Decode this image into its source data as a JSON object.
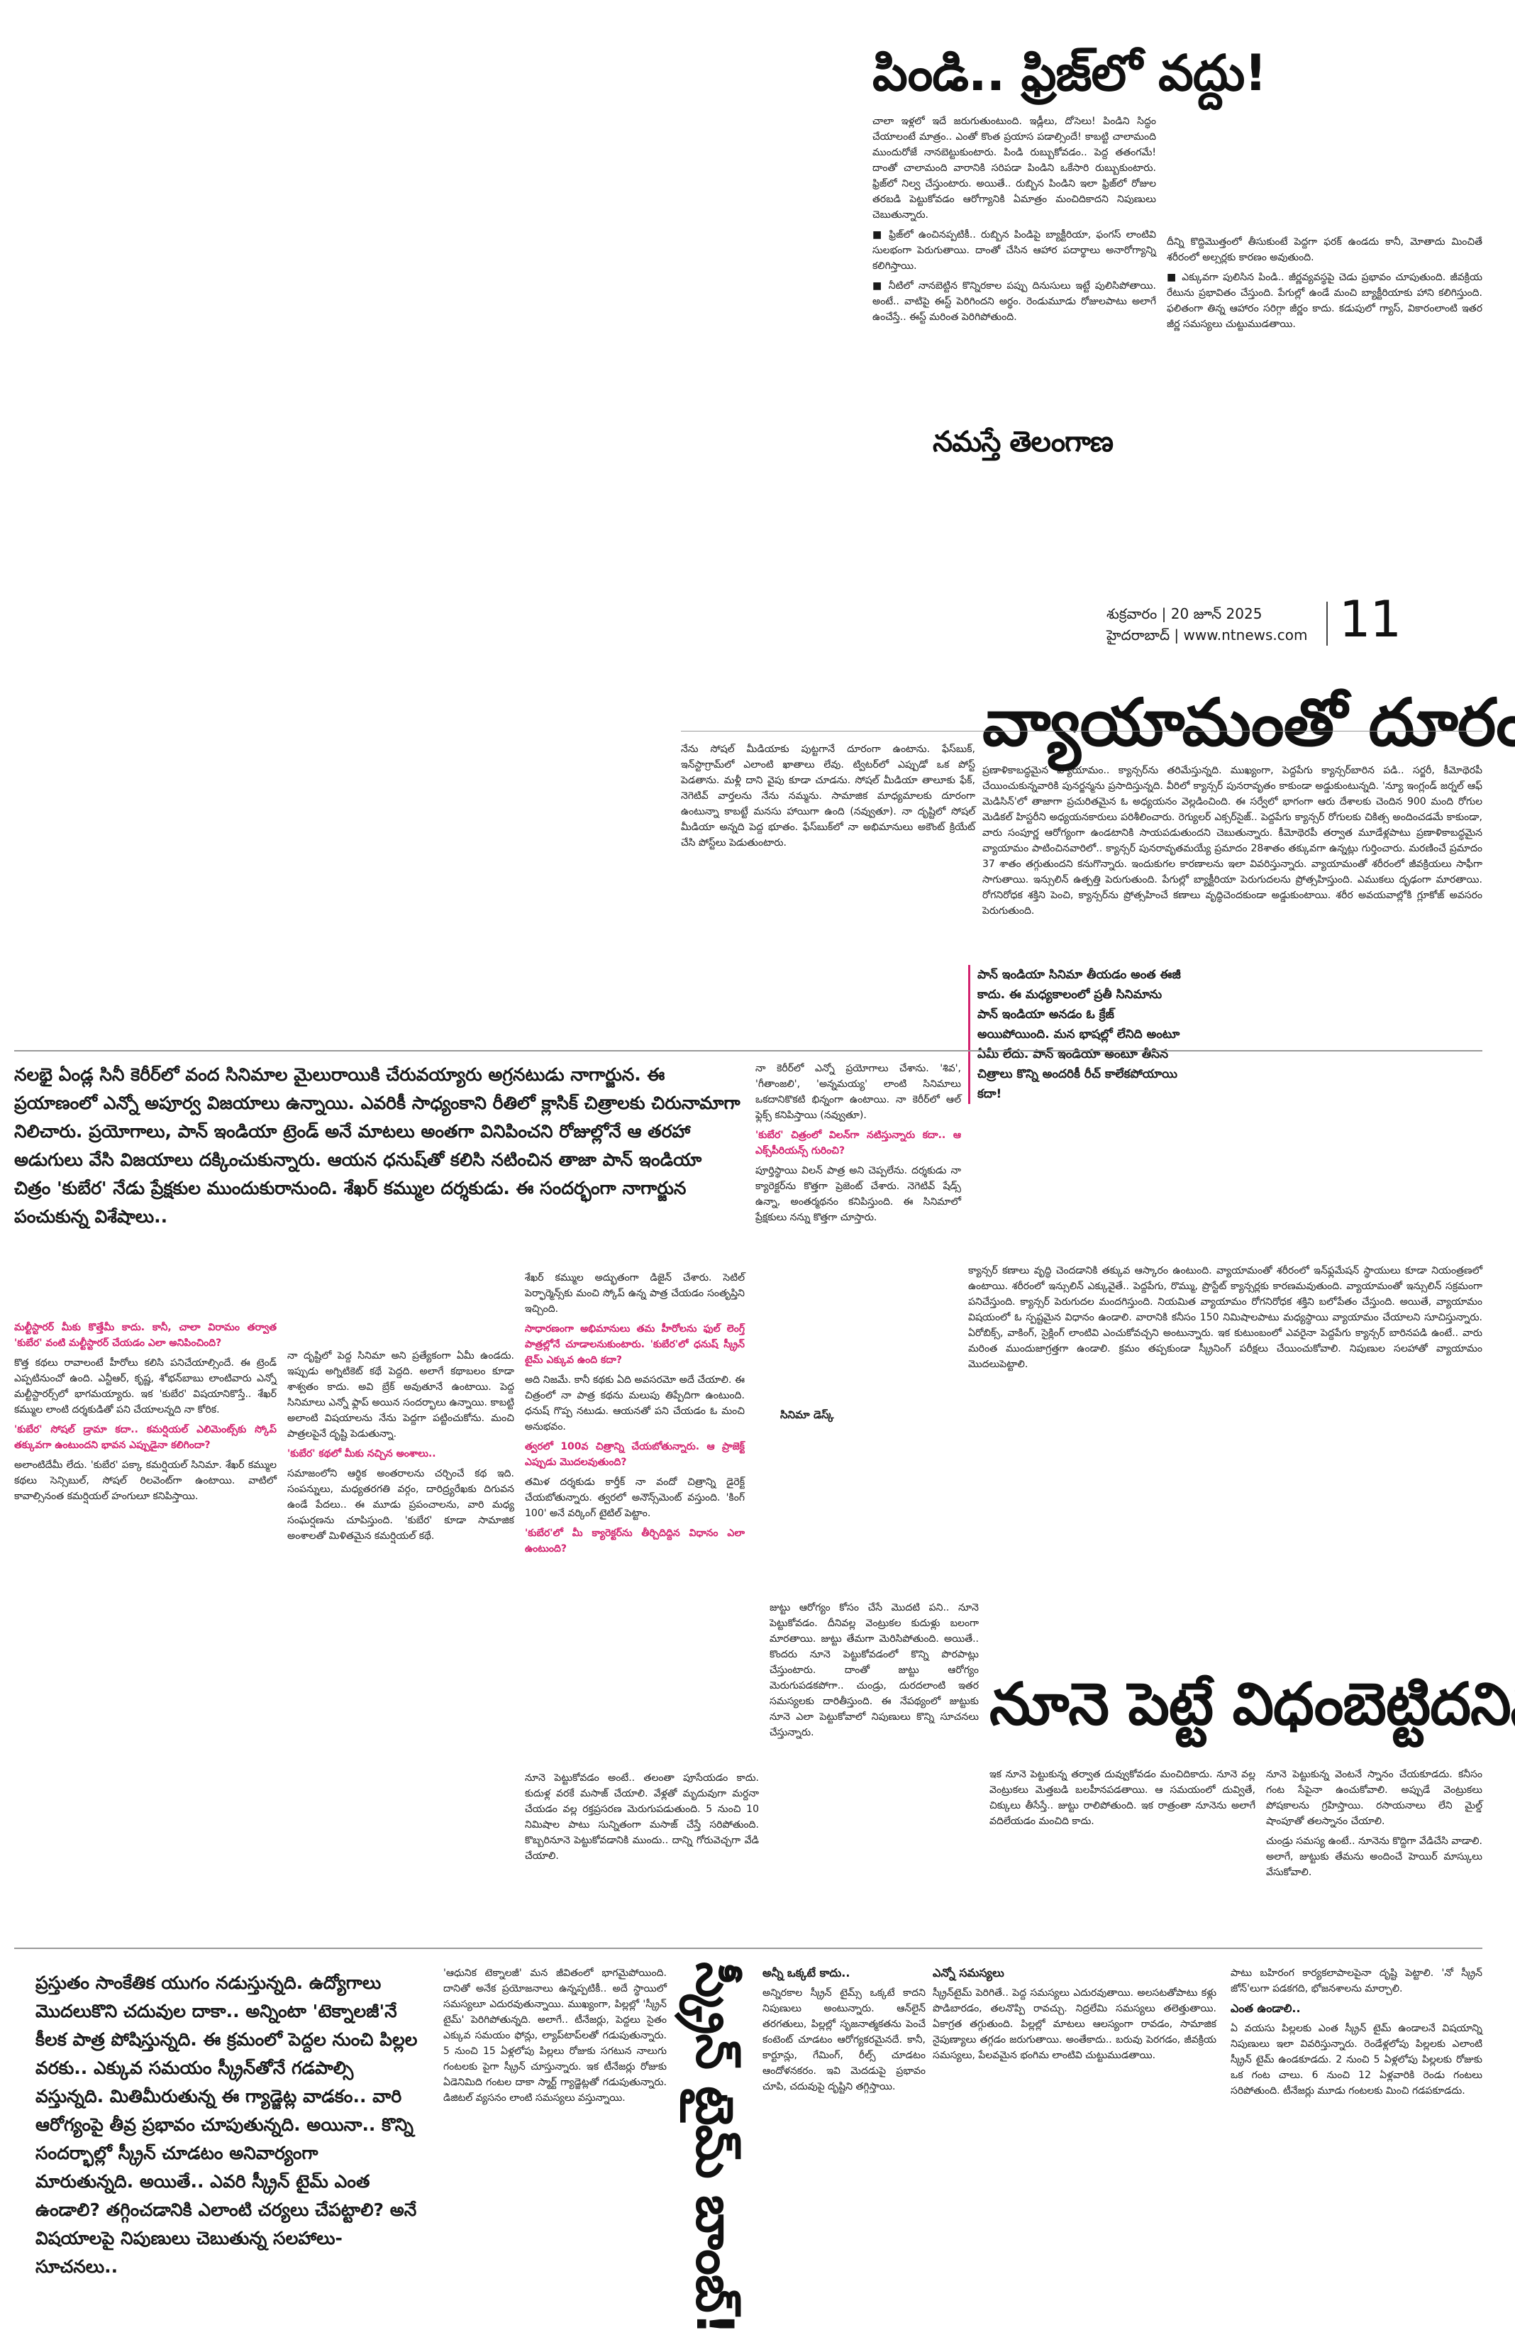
{
  "header": {
    "brand": "నమస్తే తెలంగాణ",
    "day_date": "శుక్రవారం | 20 జూన్ 2025",
    "city_site": "హైదరాబాద్ | www.ntnews.com",
    "page_number": "11"
  },
  "articles": [
    {
      "headline": "పిండి.. ఫ్రిజ్‌లో వద్దు!",
      "columns": [
        [
          {
            "p": "చాలా ఇళ్లలో ఇదే జరుగుతుంటుంది. ఇడ్లీలు, దోసెలు! పిండిని సిద్ధం చేయాలంటే మాత్రం.. ఎంతో కొంత ప్రయాస పడాల్సిందే! కాబట్టి చాలామంది ముందురోజే నానబెట్టుకుంటారు. పిండి రుబ్బుకోవడం.. పెద్ద తతంగమే! దాంతో చాలామంది వారానికి సరిపడా పిండిని ఒకేసారి రుబ్బుకుంటారు. ఫ్రిజ్‌లో నిల్వ చేస్తుంటారు. అయితే.. రుబ్బిన పిండిని ఇలా ఫ్రిజ్‌లో రోజుల తరబడి పెట్టుకోవడం ఆరోగ్యానికి ఏమాత్రం మంచిదికాదని నిపుణులు చెబుతున్నారు."
          },
          {
            "p": "■ ఫ్రిజ్‌లో ఉంచినప్పటికీ.. రుబ్బిన పిండిపై బ్యాక్టీరియా, ఫంగస్ లాంటివి సులభంగా పెరుగుతాయి. దాంతో చేసిన ఆహార పదార్థాలు అనారోగ్యాన్ని కలిగిస్తాయి."
          },
          {
            "p": "■ నీటిలో నానబెట్టిన కొన్నిరకాల పప్పు దినుసులు ఇట్టే పులిసిపోతాయి. అంటే.. వాటిపై ఈస్ట్ పెరిగిందని అర్థం. రెండుమూడు రోజులపాటు అలాగే ఉంచేస్తే.. ఈస్ట్ మరింత పెరిగిపోతుంది."
          }
        ],
        [
          {
            "p": "దీన్ని కొద్దిమొత్తంలో తీసుకుంటే పెద్దగా ఫరక్ ఉండదు కానీ, మోతాదు మించితే శరీరంలో అల్సర్లకు కారణం అవుతుంది."
          },
          {
            "p": "■ ఎక్కువగా పులిసిన పిండి.. జీర్ణవ్యవస్థపై చెడు ప్రభావం చూపుతుంది. జీవక్రియ రేటును ప్రభావితం చేస్తుంది. పేగుల్లో ఉండే మంచి బ్యాక్టీరియాకు హాని కలిగిస్తుంది. ఫలితంగా తిన్న ఆహారం సరిగ్గా జీర్ణం కాదు. కడుపులో గ్యాస్, వికారంలాంటి ఇతర జీర్ణ సమస్యలు చుట్టుముడతాయి."
          }
        ]
      ]
    },
    {
      "headline": "వ్యాయామంతో దూరం!",
      "columns": [
        [
          {
            "p": "నేను సోషల్ మీడియాకు పుట్టగానే దూరంగా ఉంటాను. ఫేస్‌బుక్, ఇన్‌స్టాగ్రామ్‌లో ఎలాంటి ఖాతాలు లేవు. ట్విటర్‌లో ఎప్పుడో ఒక పోస్ట్ పెడతాను. మళ్లీ దాని వైపు కూడా చూడను. సోషల్ మీడియా తాలూకు ఫేక్, నెగెటివ్ వార్తలను నేను నమ్మను. సామాజిక మాధ్యమాలకు దూరంగా ఉంటున్నా కాబట్టే మనసు హాయిగా ఉంది (నవ్వుతూ). నా దృష్టిలో సోషల్ మీడియా అన్నది పెద్ద భూతం. ఫేస్‌బుక్‌లో నా అభిమానులు అకౌంట్ క్రియేట్ చేసి పోస్ట్‌లు పెడుతుంటారు."
          }
        ],
        [
          {
            "p": "ప్రణాళికాబద్ధమైన వ్యాయామం.. క్యాన్సర్‌ను తరిమేస్తున్నది. ముఖ్యంగా, పెద్దపేగు క్యాన్సర్‌బారిన పడి.. సర్జరీ, కీమోథెరపీ చేయించుకున్నవారికి పునర్జన్మను ప్రసాదిస్తున్నది. వీరిలో క్యాన్సర్ పునరావృతం కాకుండా అడ్డుకుంటున్నది. 'న్యూ ఇంగ్లండ్ జర్నల్ ఆఫ్ మెడిసిన్'లో తాజాగా ప్రచురితమైన ఓ అధ్యయనం వెల్లడించింది. ఈ సర్వేలో భాగంగా ఆరు దేశాలకు చెందిన 900 మంది రోగుల మెడికల్ హిస్టరీని అధ్యయనకారులు పరిశీలించారు. రెగ్యులర్ ఎక్సర్‌సైజ్.. పెద్దపేగు క్యాన్సర్ రోగులకు చికిత్స అందించడమే కాకుండా, వారు సంపూర్ణ ఆరోగ్యంగా ఉండటానికి సాయపడుతుందని చెబుతున్నారు. కీమోథెరపీ తర్వాత మూడేళ్లపాటు ప్రణాళికాబద్ధమైన వ్యాయామం పాటించినవారిలో.. క్యాన్సర్ పునరావృతమయ్యే ప్రమాదం 28శాతం తక్కువగా ఉన్నట్లు గుర్తించారు. మరణించే ప్రమాదం 37 శాతం తగ్గుతుందని కనుగొన్నారు. ఇందుకుగల కారణాలను ఇలా వివరిస్తున్నారు. వ్యాయామంతో శరీరంలో జీవక్రియలు సాఫీగా సాగుతాయి. ఇన్సులిన్ ఉత్పత్తి పెరుగుతుంది. పేగుల్లో బ్యాక్టీరియా పెరుగుదలను ప్రోత్సహిస్తుంది. ఎముకలు దృఢంగా మారతాయి. రోగనిరోధక శక్తిని పెంచి, క్యాన్సర్‌ను ప్రోత్సహించే కణాలు వృద్ధిచెందకుండా అడ్డుకుంటాయి. శరీర అవయవాల్లోకి గ్లూకోజ్ అవసరం పెరుగుతుంది."
          }
        ],
        [
          {
            "p": "క్యాన్సర్ కణాలు వృద్ధి చెందడానికి తక్కువ ఆస్కారం ఉంటుంది. వ్యాయామంతో శరీరంలో ఇన్‌ఫ్లమేషన్ స్థాయులు కూడా నియంత్రణలో ఉంటాయి. శరీరంలో ఇన్సులిన్ ఎక్కువైతే.. పెద్దపేగు, రొమ్ము, ప్రొస్టేట్ క్యాన్సర్లకు కారణమవుతుంది. వ్యాయామంతో ఇన్సులిన్ సక్రమంగా పనిచేస్తుంది. క్యాన్సర్ పెరుగుదల మందగిస్తుంది. నియమిత వ్యాయామం రోగనిరోధక శక్తిని బలోపేతం చేస్తుంది. అయితే, వ్యాయామం విషయంలో ఓ స్పష్టమైన విధానం ఉండాలి. వారానికి కనీసం 150 నిమిషాలపాటు మధ్యస్థాయి వ్యాయామం చేయాలని సూచిస్తున్నారు. ఏరోబిక్స్, వాకింగ్, సైక్లింగ్ లాంటివి ఎంచుకోవచ్చని అంటున్నారు. ఇక కుటుంబంలో ఎవరైనా పెద్దపేగు క్యాన్సర్ బారినపడి ఉంటే.. వారు మరింత ముందుజాగ్రత్తగా ఉండాలి. క్రమం తప్పకుండా స్క్రీనింగ్ పరీక్షలు చేయించుకోవాలి. నిపుణుల సలహాతో వ్యాయామం మొదలుపెట్టాలి."
          }
        ]
      ]
    },
    {
      "headline": "నలభై ఏండ్ల సినీ కెరీర్‌లో వంద సినిమాల మైలురాయికి చేరువయ్యారు అగ్రనటుడు నాగార్జున. ఈ ప్రయాణంలో ఎన్నో అపూర్వ విజయాలు ఉన్నాయి. ఎవరికీ సాధ్యంకాని రీతిలో క్లాసిక్ చిత్రాలకు చిరునామాగా నిలిచారు. ప్రయోగాలు, పాన్ ఇండియా ట్రెండ్ అనే మాటలు అంతగా వినిపించని రోజుల్లోనే ఆ తరహా అడుగులు వేసి విజయాలు దక్కించుకున్నారు. ఆయన ధనుష్‌తో కలిసి నటించిన తాజా పాన్ ఇండియా చిత్రం 'కుబేర' నేడు ప్రేక్షకుల ముందుకురానుంది. శేఖర్ కమ్ముల దర్శకుడు. ఈ సందర్భంగా నాగార్జున పంచుకున్న విశేషాలు..",
      "columns": [
        [
          {
            "q": "మల్టీస్టారర్ మీకు కొత్తేమీ కాదు. కానీ, చాలా విరామం తర్వాత 'కుబేర' వంటి మల్టీస్టారర్ చేయడం ఎలా అనిపించింది?"
          },
          {
            "p": "కొత్త కథలు రావాలంటే హీరోలు కలిసి పనిచేయాల్సిందే. ఈ ట్రెండ్ ఎప్పటినుంచో ఉంది. ఎన్టీఆర్, కృష్ణ, శోభన్‌బాబు లాంటివారు ఎన్నో మల్టీస్టారర్స్‌లో భాగమయ్యారు. ఇక 'కుబేర' విషయానికొస్తే.. శేఖర్ కమ్ముల లాంటి దర్శకుడితో పని చేయాలన్నది నా కోరిక."
          },
          {
            "q": "'కుబేర' సోషల్ డ్రామా కదా.. కమర్షియల్ ఎలిమెంట్స్‌కు స్కోప్ తక్కువగా ఉంటుందని భావన ఎప్పుడైనా కలిగిందా?"
          },
          {
            "p": "అలాంటిదేమీ లేదు. 'కుబేర' పక్కా కమర్షియల్ సినిమా. శేఖర్ కమ్ముల కథలు సెన్సిబుల్, సోషల్ రిలవెంట్‌గా ఉంటాయి. వాటిలో కావాల్సినంత కమర్షియల్ హంగులూ కనిపిస్తాయి."
          }
        ],
        [
          {
            "p": "నా దృష్టిలో పెద్ద సినిమా అని ప్రత్యేకంగా ఏమీ ఉండదు. ఇప్పుడు అగ్నిటికెట్ కథే పెద్దది. అలాగే కథాబలం కూడా శాశ్వతం కాదు. అవి బ్రేక్ అవుతూనే ఉంటాయి. పెద్ద సినిమాలు ఎన్నో ఫ్లాప్ అయిన సందర్భాలు ఉన్నాయి. కాబట్టి అలాంటి విషయాలను నేను పెద్దగా పట్టించుకోను. మంచి పాత్రలపైనే దృష్టి పెడుతున్నా."
          },
          {
            "q": "'కుబేర' కథలో మీకు నచ్చిన అంశాలు.."
          },
          {
            "p": "సమాజంలోని ఆర్థిక అంతరాలను చర్చించే కథ ఇది. సంపన్నులు, మధ్యతరగతి వర్గం, దారిద్ర్యరేఖకు దిగువన ఉండే పేదలు.. ఈ మూడు ప్రపంచాలను, వారి మధ్య సంఘర్షణను చూపిస్తుంది. 'కుబేర' కూడా సామాజిక అంశాలతో మిళితమైన కమర్షియల్ కథే."
          }
        ],
        [
          {
            "p": "శేఖర్ కమ్ముల అద్భుతంగా డిజైన్ చేశారు. సెటిల్ పెర్ఫార్మెన్స్‌కు మంచి స్కోప్ ఉన్న పాత్ర చేయడం సంతృప్తిని ఇచ్చింది."
          },
          {
            "q": "సాధారణంగా అభిమానులు తమ హీరోలను ఫుల్ లెంగ్త్ పాత్రల్లోనే చూడాలనుకుంటారు. 'కుబేర'లో ధనుష్ స్క్రీన్ టైమ్ ఎక్కువ ఉంది కదా?"
          },
          {
            "p": "అది నిజమే. కానీ కథకు ఏది అవసరమో అదే చేయాలి. ఈ చిత్రంలో నా పాత్ర కథను మలుపు తిప్పేదిగా ఉంటుంది. ధనుష్ గొప్ప నటుడు. ఆయనతో పని చేయడం ఓ మంచి అనుభవం."
          },
          {
            "q": "త్వరలో 100వ చిత్రాన్ని చేయబోతున్నారు. ఆ ప్రాజెక్ట్ ఎప్పుడు మొదలవుతుంది?"
          },
          {
            "p": "తమిళ దర్శకుడు కార్తీక్ నా వందో చిత్రాన్ని డైరెక్ట్ చేయబోతున్నారు. త్వరలో అనౌన్స్‌మెంట్ వస్తుంది. 'కింగ్ 100' అనే వర్కింగ్ టైటిల్ పెట్టాం."
          },
          {
            "q": "'కుబేర'లో మీ క్యారెక్టర్‌ను తీర్చిదిద్దిన విధానం ఎలా ఉంటుంది?"
          }
        ],
        [
          {
            "p": "నా కెరీర్‌లో ఎన్నో ప్రయోగాలు చేశాను. 'శివ', 'గీతాంజలి', 'అన్నమయ్య' లాంటి సినిమాలు ఒకదానికొకటి భిన్నంగా ఉంటాయి. నా కెరీర్‌లో ఆల్ ఫ్లెక్స్ కనిపిస్తాయి (నవ్వుతూ)."
          },
          {
            "q": "'కుబేర' చిత్రంలో విలన్‌గా నటిస్తున్నారు కదా.. ఆ ఎక్స్‌పీరియన్స్ గురించి?"
          },
          {
            "p": "పూర్తిస్థాయి విలన్ పాత్ర అని చెప్పలేను. దర్శకుడు నా క్యారెక్టర్‌ను కొత్తగా ప్రెజెంట్ చేశారు. నెగెటివ్ షేడ్స్ ఉన్నా, అంతర్మథనం కనిపిస్తుంది. ఈ సినిమాలో ప్రేక్షకులు నన్ను కొత్తగా చూస్తారు."
          }
        ]
      ],
      "quote": "పాన్ ఇండియా సినిమా తీయడం అంత ఈజీ కాదు. ఈ మధ్యకాలంలో ప్రతీ సినిమాను పాన్ ఇండియా అనడం ఓ క్రేజ్ అయిపోయింది. మన భాషల్లో లేనిది అంటూ ఏమీ లేదు. పాన్ ఇండియా అంటూ తీసిన చిత్రాలు కొన్ని అందరికీ రీచ్ కాలేకపోయాయి కదా!",
      "byline": "సినిమా డెస్క్"
    },
    {
      "headline": "నూనె పెట్టే విధంబెట్టిదనిన!",
      "columns": [
        [
          {
            "p": "జుట్టు ఆరోగ్యం కోసం చేసే మొదటి పని.. నూనె పెట్టుకోవడం. దీనివల్ల వెంట్రుకల కుదుళ్లు బలంగా మారతాయి. జుట్టు తేమగా మెరిసిపోతుంది. అయితే.. కొందరు నూనె పెట్టుకోవడంలో కొన్ని పొరపాట్లు చేస్తుంటారు. దాంతో జుట్టు ఆరోగ్యం మెరుగుపడకపోగా.. చుండ్రు, దురదలాంటి ఇతర సమస్యలకు దారితీస్తుంది. ఈ నేపథ్యంలో జుట్టుకు నూనె ఎలా పెట్టుకోవాలో నిపుణులు కొన్ని సూచనలు చేస్తున్నారు."
          }
        ],
        [
          {
            "p": "నూనె పెట్టుకోవడం అంటే.. తలంతా పూసేయడం కాదు. కుదుళ్ల వరకే మసాజ్ చేయాలి. వేళ్లతో మృదువుగా మర్దనా చేయడం వల్ల రక్తప్రసరణ మెరుగుపడుతుంది. 5 నుంచి 10 నిమిషాల పాటు సున్నితంగా మసాజ్ చేస్తే సరిపోతుంది. కొబ్బరినూనె పెట్టుకోవడానికి ముందు.. దాన్ని గోరువెచ్చగా వేడి చేయాలి."
          }
        ],
        [
          {
            "p": "ఇక నూనె పెట్టుకున్న తర్వాత దువ్వుకోవడం మంచిదికాదు. నూనె వల్ల వెంట్రుకలు మెత్తబడి బలహీనపడతాయి. ఆ సమయంలో దువ్వితే, చిక్కులు తీసేస్తే.. జుట్టు రాలిపోతుంది. ఇక రాత్రంతా నూనెను అలాగే వదిలేయడం మంచిది కాదు."
          }
        ],
        [
          {
            "p": "నూనె పెట్టుకున్న వెంటనే స్నానం చేయకూడదు. కనీసం గంట సేపైనా ఉంచుకోవాలి. అప్పుడే వెంట్రుకలు పోషకాలను గ్రహిస్తాయి. రసాయనాలు లేని మైల్డ్ షాంపూతో తలస్నానం చేయాలి."
          },
          {
            "p": "చుండ్రు సమస్య ఉంటే.. నూనెను కొద్దిగా వేడిచేసి వాడాలి. అలాగే, జుట్టుకు తేమను అందించే హెయిర్ మాస్కులు వేసుకోవాలి."
          }
        ]
      ]
    },
    {
      "headline": "స్క్రీన్ టైమ్ బాంబ్!",
      "intro": "ప్రస్తుతం సాంకేతిక యుగం నడుస్తున్నది. ఉద్యోగాలు మొదలుకొని చదువుల దాకా.. అన్నింటా 'టెక్నాలజీ'నే కీలక పాత్ర పోషిస్తున్నది. ఈ క్రమంలో పెద్దల నుంచి పిల్లల వరకు.. ఎక్కువ సమయం స్క్రీన్‌తోనే గడపాల్సి వస్తున్నది. మితిమీరుతున్న ఈ గ్యాడ్జెట్ల వాడకం.. వారి ఆరోగ్యంపై తీవ్ర ప్రభావం చూపుతున్నది. అయినా.. కొన్ని సందర్భాల్లో స్క్రీన్ చూడటం అనివార్యంగా మారుతున్నది. అయితే.. ఎవరి స్క్రీన్ టైమ్ ఎంత ఉండాలి? తగ్గించడానికి ఎలాంటి చర్యలు చేపట్టాలి? అనే విషయాలపై నిపుణులు చెబుతున్న సలహాలు-సూచనలు..",
      "columns": [
        [
          {
            "p": "'ఆధునిక టెక్నాలజీ' మన జీవితంలో భాగమైపోయింది. దానితో అనేక ప్రయోజనాలు ఉన్నప్పటికీ.. అదే స్థాయిలో సమస్యలూ ఎదురవుతున్నాయి. ముఖ్యంగా, పిల్లల్లో 'స్క్రీన్ టైమ్' పెరిగిపోతున్నది. అలాగే.. టీనేజర్లు, పెద్దలు సైతం ఎక్కువ సమయం ఫోన్లు, ల్యాప్‌టాప్‌లతో గడుపుతున్నారు. 5 నుంచి 15 ఏళ్లలోపు పిల్లలు రోజుకు సగటున నాలుగు గంటలకు పైగా స్క్రీన్ చూస్తున్నారు. ఇక టీనేజర్లు రోజుకు ఏడెనిమిది గంటల దాకా స్మార్ట్ గ్యాడ్జెట్లతో గడుపుతున్నారు. డిజిటల్ వ్యసనం లాంటి సమస్యలు వస్తున్నాయి."
          }
        ],
        [
          {
            "sub": "అన్నీ ఒక్కటే కాదు.."
          },
          {
            "p": "అన్నిరకాల స్క్రీన్ టైమ్స్ ఒక్కటే కాదని నిపుణులు అంటున్నారు. ఆన్‌లైన్ తరగతులు, పిల్లల్లో సృజనాత్మకతను పెంచే కంటెంట్ చూడటం ఆరోగ్యకరమైనదే. కానీ, కార్టూన్లు, గేమింగ్, రీల్స్ చూడటం ఆందోళనకరం. ఇవి మెదడుపై ప్రభావం చూపి, చదువుపై దృష్టిని తగ్గిస్తాయి."
          }
        ],
        [
          {
            "sub": "ఎన్నో సమస్యలు"
          },
          {
            "p": "స్క్రీన్‌టైమ్ పెరిగితే.. పెద్ద సమస్యలు ఎదురవుతాయి. అలసటతోపాటు కళ్లు పొడిబారడం, తలనొప్పి రావచ్చు. నిద్రలేమి సమస్యలు తలెత్తుతాయి. ఏకాగ్రత తగ్గుతుంది. పిల్లల్లో మాటలు ఆలస్యంగా రావడం, సామాజిక నైపుణ్యాలు తగ్గడం జరుగుతాయి. అంతేకాదు.. బరువు పెరగడం, జీవక్రియ సమస్యలు, పేలవమైన భంగిమ లాంటివి చుట్టుముడతాయి."
          }
        ],
        [
          {
            "p": "పాటు బహిరంగ కార్యకలాపాలపైనా దృష్టి పెట్టాలి. 'నో స్క్రీన్ జోన్'లుగా పడకగది, భోజనశాలను మార్చాలి."
          },
          {
            "sub": "ఎంత ఉండాలి.."
          },
          {
            "p": "ఏ వయసు పిల్లలకు ఎంత స్క్రీన్ టైమ్ ఉండాలనే విషయాన్ని నిపుణులు ఇలా వివరిస్తున్నారు. రెండేళ్లలోపు పిల్లలకు ఎలాంటి స్క్రీన్ టైమ్ ఉండకూడదు. 2 నుంచి 5 ఏళ్లలోపు పిల్లలకు రోజుకు ఒక గంట చాలు. 6 నుంచి 12 ఏళ్లవారికి రెండు గంటలు సరిపోతుంది. టీనేజర్లు మూడు గంటలకు మించి గడపకూడదు."
          }
        ]
      ]
    }
  ]
}
